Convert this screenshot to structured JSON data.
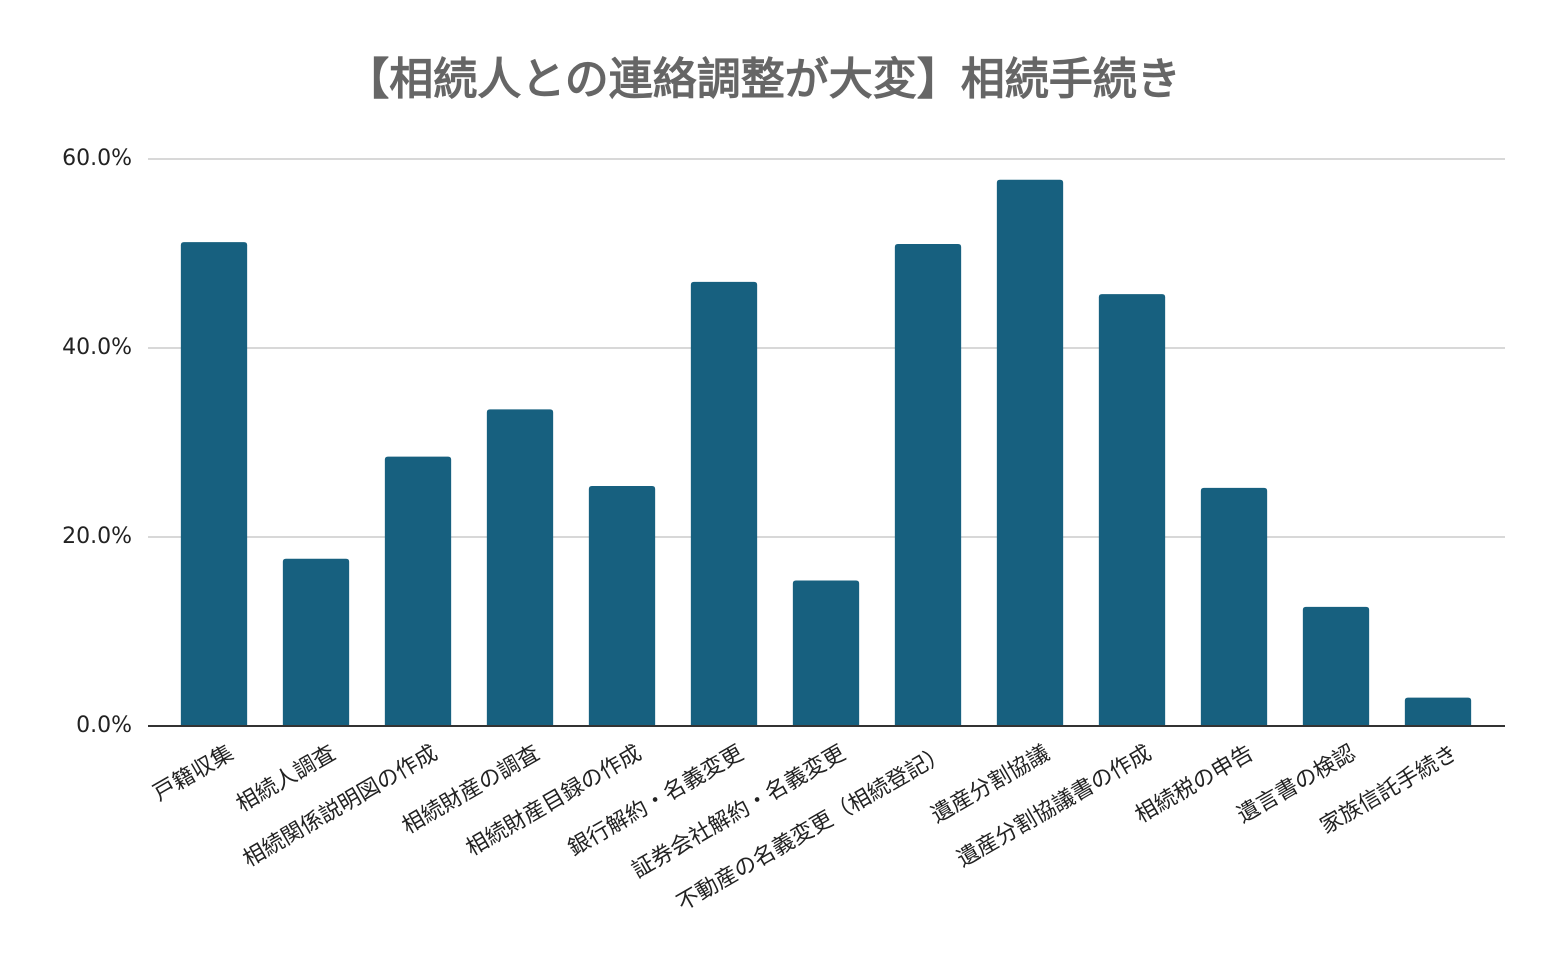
{
  "chart_data": {
    "type": "bar",
    "title": "【相続人との連絡調整が大変】相続手続き",
    "categories": [
      "戸籍収集",
      "相続人調査",
      "相続関係説明図の作成",
      "相続財産の調査",
      "相続財産目録の作成",
      "銀行解約・名義変更",
      "証券会社解約・名義変更",
      "不動産の名義変更（相続登記）",
      "遺産分割協議",
      "遺産分割協議書の作成",
      "相続税の申告",
      "遺言書の検認",
      "家族信託手続き"
    ],
    "values": [
      51.2,
      17.7,
      28.5,
      33.5,
      25.4,
      47.0,
      15.4,
      51.0,
      57.8,
      45.7,
      25.2,
      12.6,
      3.0
    ],
    "color": "#17607f",
    "ylim": [
      0,
      60
    ],
    "yticks": [
      {
        "value": 0,
        "label": "0.0%"
      },
      {
        "value": 20,
        "label": "20.0%"
      },
      {
        "value": 40,
        "label": "40.0%"
      },
      {
        "value": 60,
        "label": "60.0%"
      }
    ],
    "grid": true
  }
}
